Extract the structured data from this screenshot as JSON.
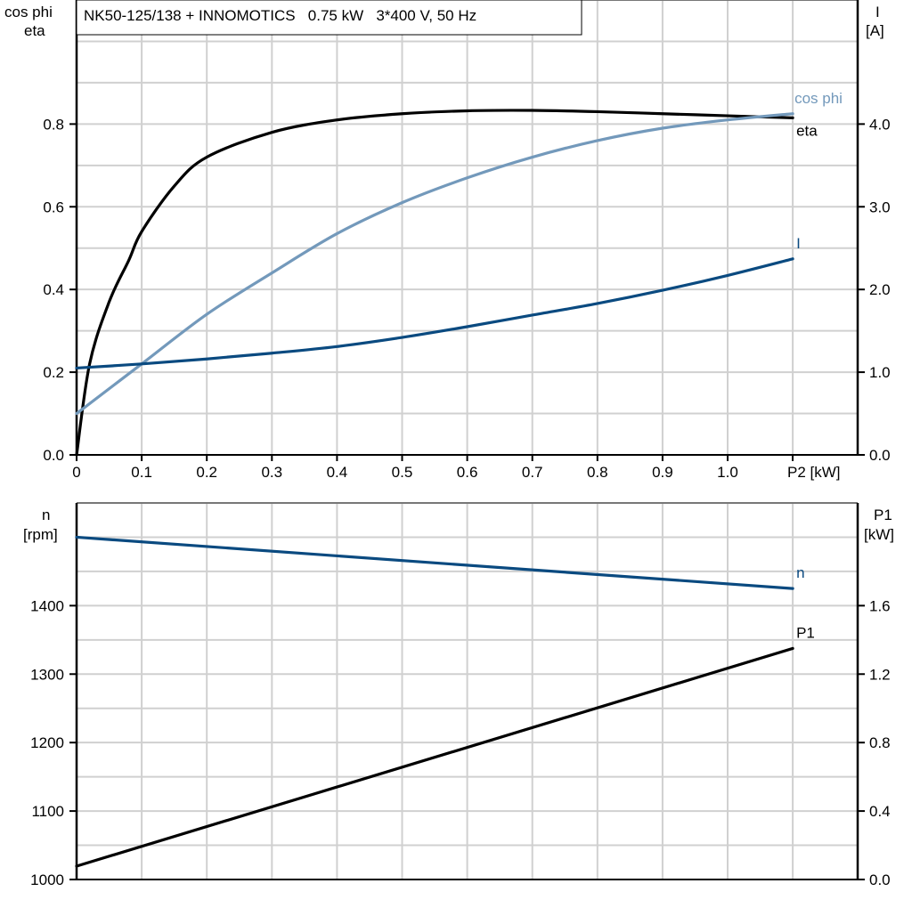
{
  "title": "NK50-125/138 + INNOMOTICS   0.75 kW   3*400 V, 50 Hz",
  "colors": {
    "eta": "#000000",
    "cos_phi": "#7399bb",
    "I": "#0a4a80",
    "n": "#0a4a80",
    "P1": "#000000",
    "grid": "#d0d0d0"
  },
  "chart_data": [
    {
      "type": "line",
      "xlabel": "P2 [kW]",
      "xlim": [
        0,
        1.1
      ],
      "x_ticks": [
        "0",
        "0.1",
        "0.2",
        "0.3",
        "0.4",
        "0.5",
        "0.6",
        "0.7",
        "0.8",
        "0.9",
        "1.0"
      ],
      "ylabel_left": [
        "cos phi",
        "eta"
      ],
      "ylim_left": [
        0,
        1.1
      ],
      "y_ticks_left": [
        "0.0",
        "0.2",
        "0.4",
        "0.6",
        "0.8"
      ],
      "ylabel_right": [
        "I",
        "[A]"
      ],
      "ylim_right": [
        0,
        5.5
      ],
      "y_ticks_right": [
        "0.0",
        "1.0",
        "2.0",
        "3.0",
        "4.0"
      ],
      "grid": true,
      "series": [
        {
          "name": "eta",
          "axis": "left",
          "color": "#000000",
          "x": [
            0,
            0.02,
            0.05,
            0.08,
            0.1,
            0.15,
            0.2,
            0.3,
            0.4,
            0.5,
            0.6,
            0.7,
            0.8,
            0.9,
            1.0,
            1.1
          ],
          "y": [
            0,
            0.22,
            0.37,
            0.47,
            0.54,
            0.65,
            0.72,
            0.78,
            0.81,
            0.825,
            0.832,
            0.833,
            0.83,
            0.825,
            0.82,
            0.815
          ]
        },
        {
          "name": "cos phi",
          "axis": "left",
          "color": "#7399bb",
          "x": [
            0,
            0.1,
            0.2,
            0.3,
            0.4,
            0.5,
            0.6,
            0.7,
            0.8,
            0.9,
            1.0,
            1.1
          ],
          "y": [
            0.1,
            0.22,
            0.34,
            0.44,
            0.535,
            0.61,
            0.67,
            0.72,
            0.76,
            0.79,
            0.81,
            0.825
          ]
        },
        {
          "name": "I",
          "axis": "right",
          "color": "#0a4a80",
          "x": [
            0,
            0.1,
            0.2,
            0.3,
            0.4,
            0.5,
            0.6,
            0.7,
            0.8,
            0.9,
            1.0,
            1.1
          ],
          "y": [
            1.05,
            1.1,
            1.16,
            1.23,
            1.31,
            1.42,
            1.55,
            1.69,
            1.83,
            1.99,
            2.17,
            2.37
          ]
        }
      ]
    },
    {
      "type": "line",
      "xlim": [
        0,
        1.1
      ],
      "ylabel_left": [
        "n",
        "[rpm]"
      ],
      "ylim_left": [
        1000,
        1550
      ],
      "y_ticks_left": [
        "1000",
        "1100",
        "1200",
        "1300",
        "1400"
      ],
      "ylabel_right": [
        "P1",
        "[kW]"
      ],
      "ylim_right": [
        0,
        2.2
      ],
      "y_ticks_right": [
        "0.0",
        "0.4",
        "0.8",
        "1.2",
        "1.6"
      ],
      "grid": true,
      "series": [
        {
          "name": "n",
          "axis": "left",
          "color": "#0a4a80",
          "x": [
            0,
            1.1
          ],
          "y": [
            1500,
            1425
          ]
        },
        {
          "name": "P1",
          "axis": "right",
          "color": "#000000",
          "x": [
            0,
            1.1
          ],
          "y": [
            0.078,
            1.35
          ]
        }
      ]
    }
  ]
}
